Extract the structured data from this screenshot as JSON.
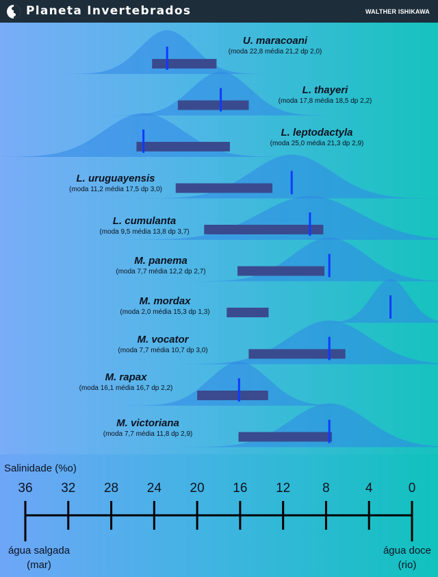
{
  "header": {
    "brand": "Planeta Invertebrados",
    "author": "WALTHER ISHIKAWA"
  },
  "colors": {
    "curve_fill": "#2f87e6",
    "box": "#3a4a8e",
    "mode_line": "#0d3bff"
  },
  "chart_data": {
    "type": "area",
    "xlabel": "Salinidade (%o)",
    "xlim": [
      36,
      0
    ],
    "xticks": [
      36,
      32,
      28,
      24,
      20,
      16,
      12,
      8,
      4,
      0
    ],
    "tick_labels": [
      "36",
      "32",
      "28",
      "24",
      "20",
      "16",
      "12",
      "8",
      "4",
      "0"
    ],
    "left_end_label": [
      "água salgada",
      "(mar)"
    ],
    "right_end_label": [
      "água doce",
      "(rio)"
    ],
    "series": [
      {
        "name": "U. maracoani",
        "stats": "(moda 22,8 média 21,2 dp 2,0)",
        "mode": 22.8,
        "mean": 21.2,
        "sd": 2.0
      },
      {
        "name": "L. thayeri",
        "stats": "(moda 17,8 média 18,5 dp 2,2)",
        "mode": 17.8,
        "mean": 18.5,
        "sd": 2.2
      },
      {
        "name": "L. leptodactyla",
        "stats": "(moda 25,0 média 21,3 dp 2,9)",
        "mode": 25.0,
        "mean": 21.3,
        "sd": 2.9
      },
      {
        "name": "L. uruguayensis",
        "stats": "(moda 11,2 média 17,5 dp 3,0)",
        "mode": 11.2,
        "mean": 17.5,
        "sd": 3.0
      },
      {
        "name": "L. cumulanta",
        "stats": "(moda 9,5 média 13,8 dp 3,7)",
        "mode": 9.5,
        "mean": 13.8,
        "sd": 3.7
      },
      {
        "name": "M. panema",
        "stats": "(moda 7,7 média 12,2 dp 2,7)",
        "mode": 7.7,
        "mean": 12.2,
        "sd": 2.7
      },
      {
        "name": "M. mordax",
        "stats": "(moda 2,0 média 15,3 dp 1,3)",
        "mode": 2.0,
        "mean": 15.3,
        "sd": 1.3
      },
      {
        "name": "M. vocator",
        "stats": "(moda 7,7 média 10,7 dp 3,0)",
        "mode": 7.7,
        "mean": 10.7,
        "sd": 3.0
      },
      {
        "name": "M. rapax",
        "stats": "(moda 16,1 média 16,7 dp 2,2)",
        "mode": 16.1,
        "mean": 16.7,
        "sd": 2.2
      },
      {
        "name": "M. victoriana",
        "stats": "(moda 7,7 média 11,8 dp 2,9)",
        "mode": 7.7,
        "mean": 11.8,
        "sd": 2.9
      }
    ]
  }
}
